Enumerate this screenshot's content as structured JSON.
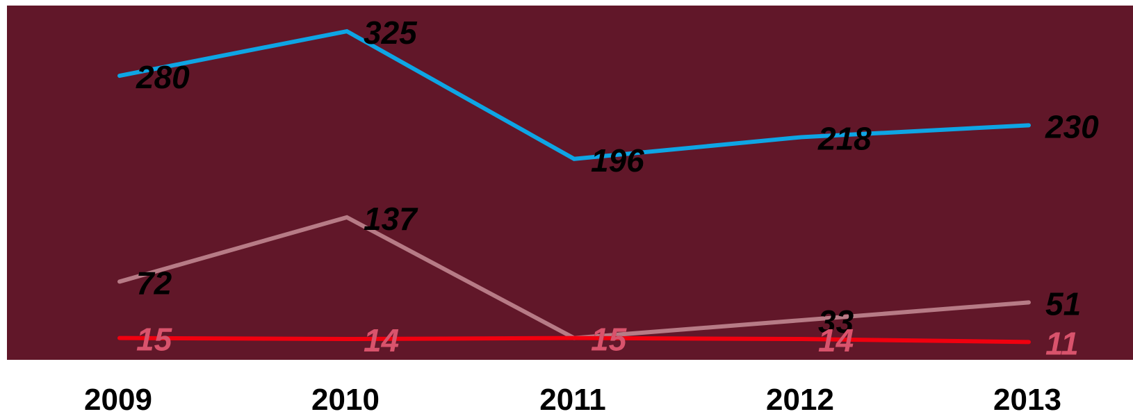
{
  "chart_data": {
    "type": "line",
    "categories": [
      "2009",
      "2010",
      "2011",
      "2012",
      "2013"
    ],
    "series": [
      {
        "values": [
          280,
          325,
          196,
          218,
          230
        ],
        "color": "#0ea5e4",
        "label_color": "#000000"
      },
      {
        "values": [
          72,
          137,
          15,
          33,
          51
        ],
        "color": "#b77b86",
        "label_color": "#000000"
      },
      {
        "values": [
          15,
          14,
          15,
          14,
          11
        ],
        "color": "#f0000f",
        "label_color": "#d9536c"
      }
    ],
    "ylim": [
      0,
      350
    ],
    "grid": false,
    "legend": "none",
    "plot_background": "#611729"
  }
}
